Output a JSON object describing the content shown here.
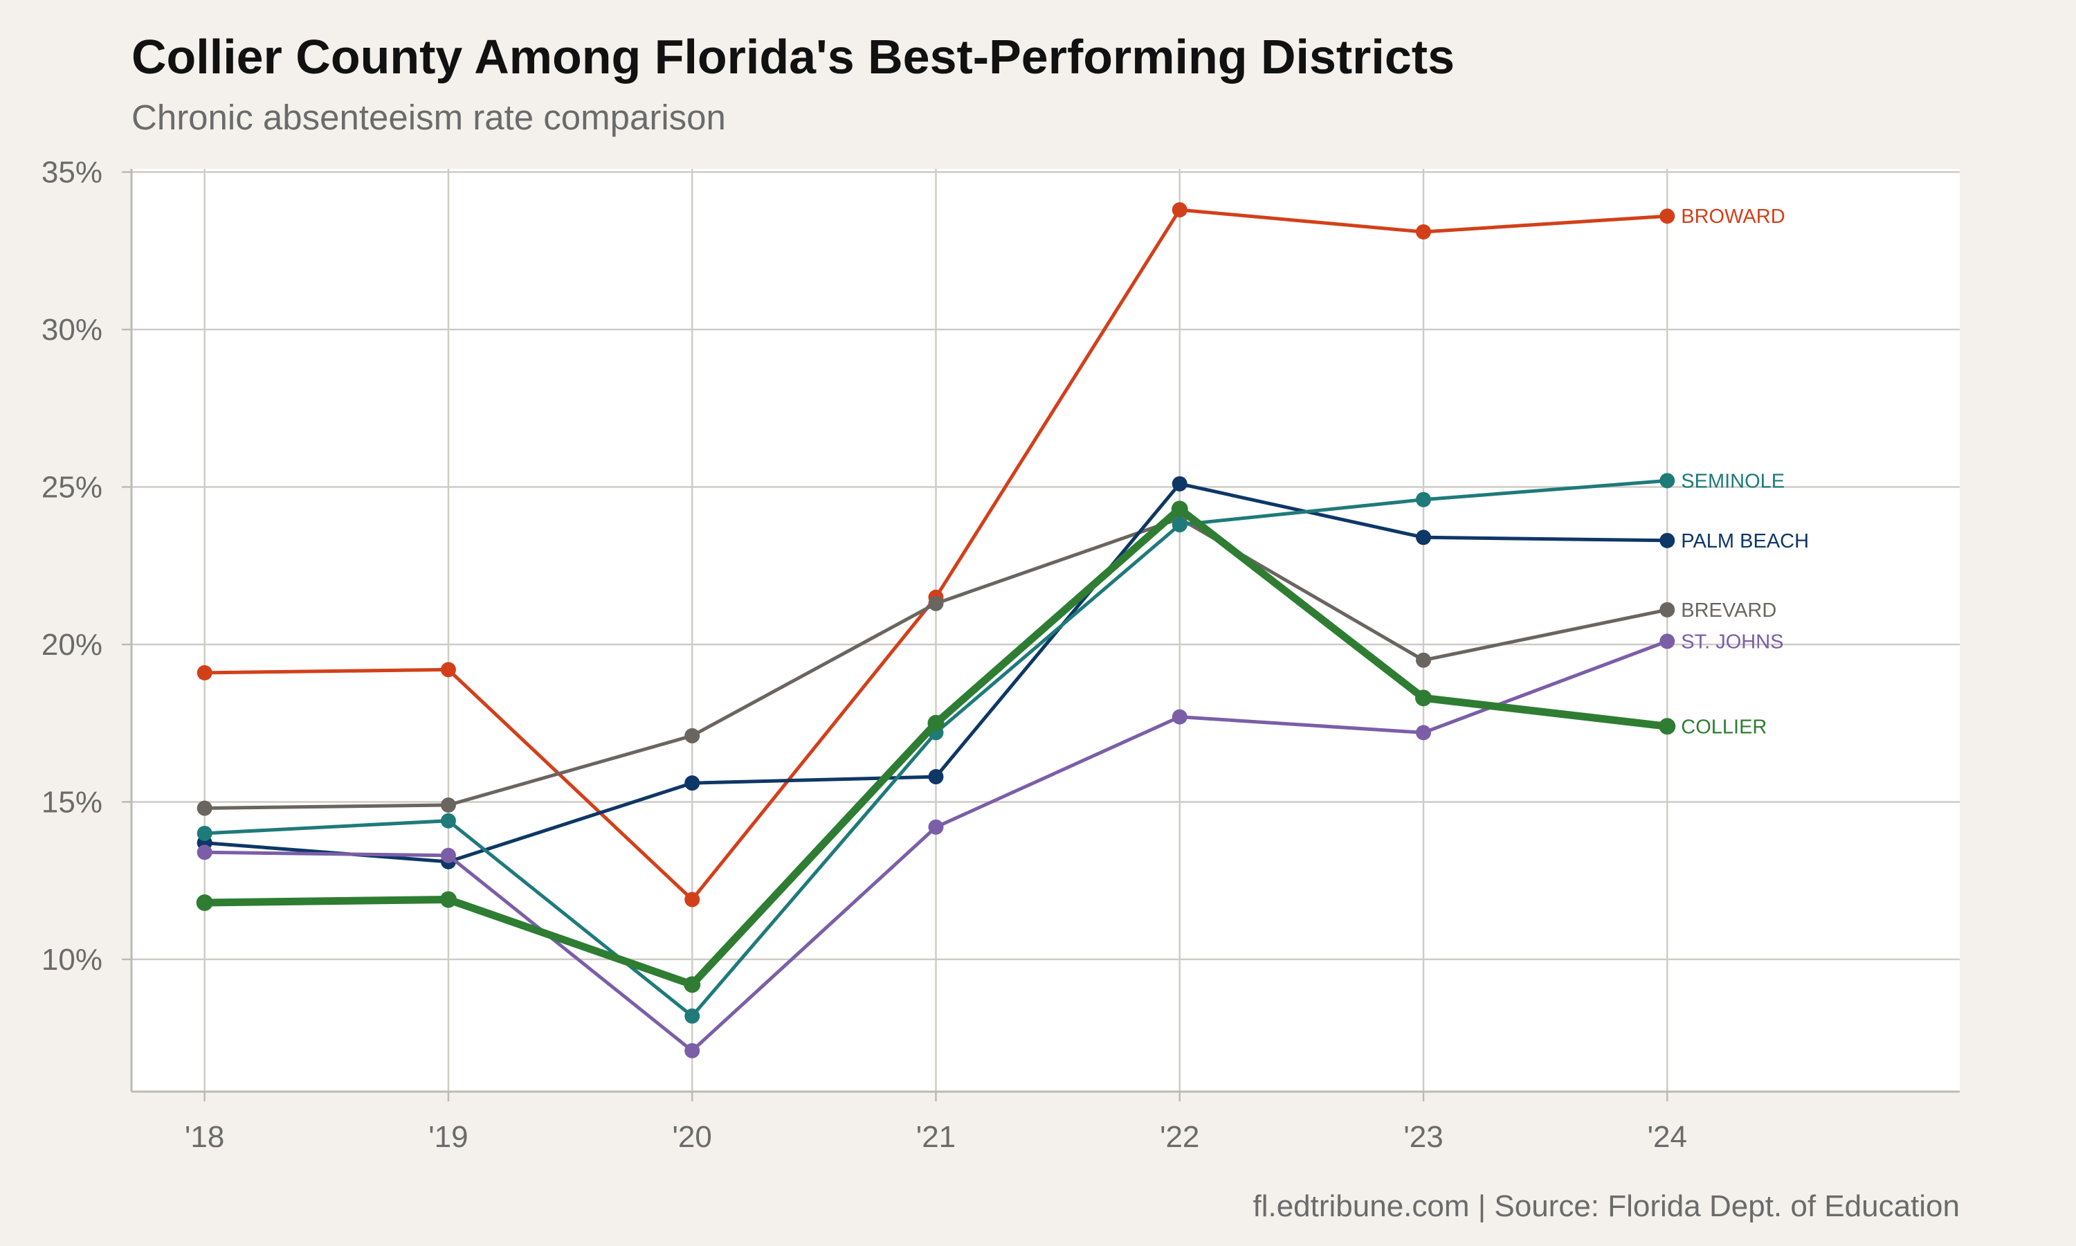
{
  "chart_data": {
    "type": "line",
    "title": "Collier County Among Florida's Best-Performing Districts",
    "subtitle": "Chronic absenteeism rate comparison",
    "source": "fl.edtribune.com | Source: Florida Dept. of Education",
    "x": [
      "'18",
      "'19",
      "'20",
      "'21",
      "'22",
      "'23",
      "'24"
    ],
    "xlim": [
      2017.7,
      2025.2
    ],
    "ylim": [
      5.8,
      35.1
    ],
    "yticks": [
      10,
      15,
      20,
      25,
      30,
      35
    ],
    "ytick_labels": [
      "10%",
      "15%",
      "20%",
      "25%",
      "30%",
      "35%"
    ],
    "grid": true,
    "legend": "direct labels at line ends",
    "series": [
      {
        "name": "BROWARD",
        "color": "#d2401a",
        "width": "normal",
        "values": [
          19.1,
          19.2,
          11.9,
          21.5,
          33.8,
          33.1,
          33.6
        ]
      },
      {
        "name": "BREVARD",
        "color": "#6b6560",
        "width": "normal",
        "values": [
          14.8,
          14.9,
          17.1,
          21.3,
          24.0,
          19.5,
          21.1
        ]
      },
      {
        "name": "PALM BEACH",
        "color": "#0d3766",
        "width": "normal",
        "values": [
          13.7,
          13.1,
          15.6,
          15.8,
          25.1,
          23.4,
          23.3
        ]
      },
      {
        "name": "SEMINOLE",
        "color": "#1f7a7a",
        "width": "normal",
        "values": [
          14.0,
          14.4,
          8.2,
          17.2,
          23.8,
          24.6,
          25.2
        ]
      },
      {
        "name": "ST. JOHNS",
        "color": "#7b5ea7",
        "width": "normal",
        "values": [
          13.4,
          13.3,
          7.1,
          14.2,
          17.7,
          17.2,
          20.1
        ]
      },
      {
        "name": "COLLIER",
        "color": "#2e7d32",
        "width": "bold",
        "values": [
          11.8,
          11.9,
          9.2,
          17.5,
          24.3,
          18.3,
          17.4
        ]
      }
    ]
  }
}
